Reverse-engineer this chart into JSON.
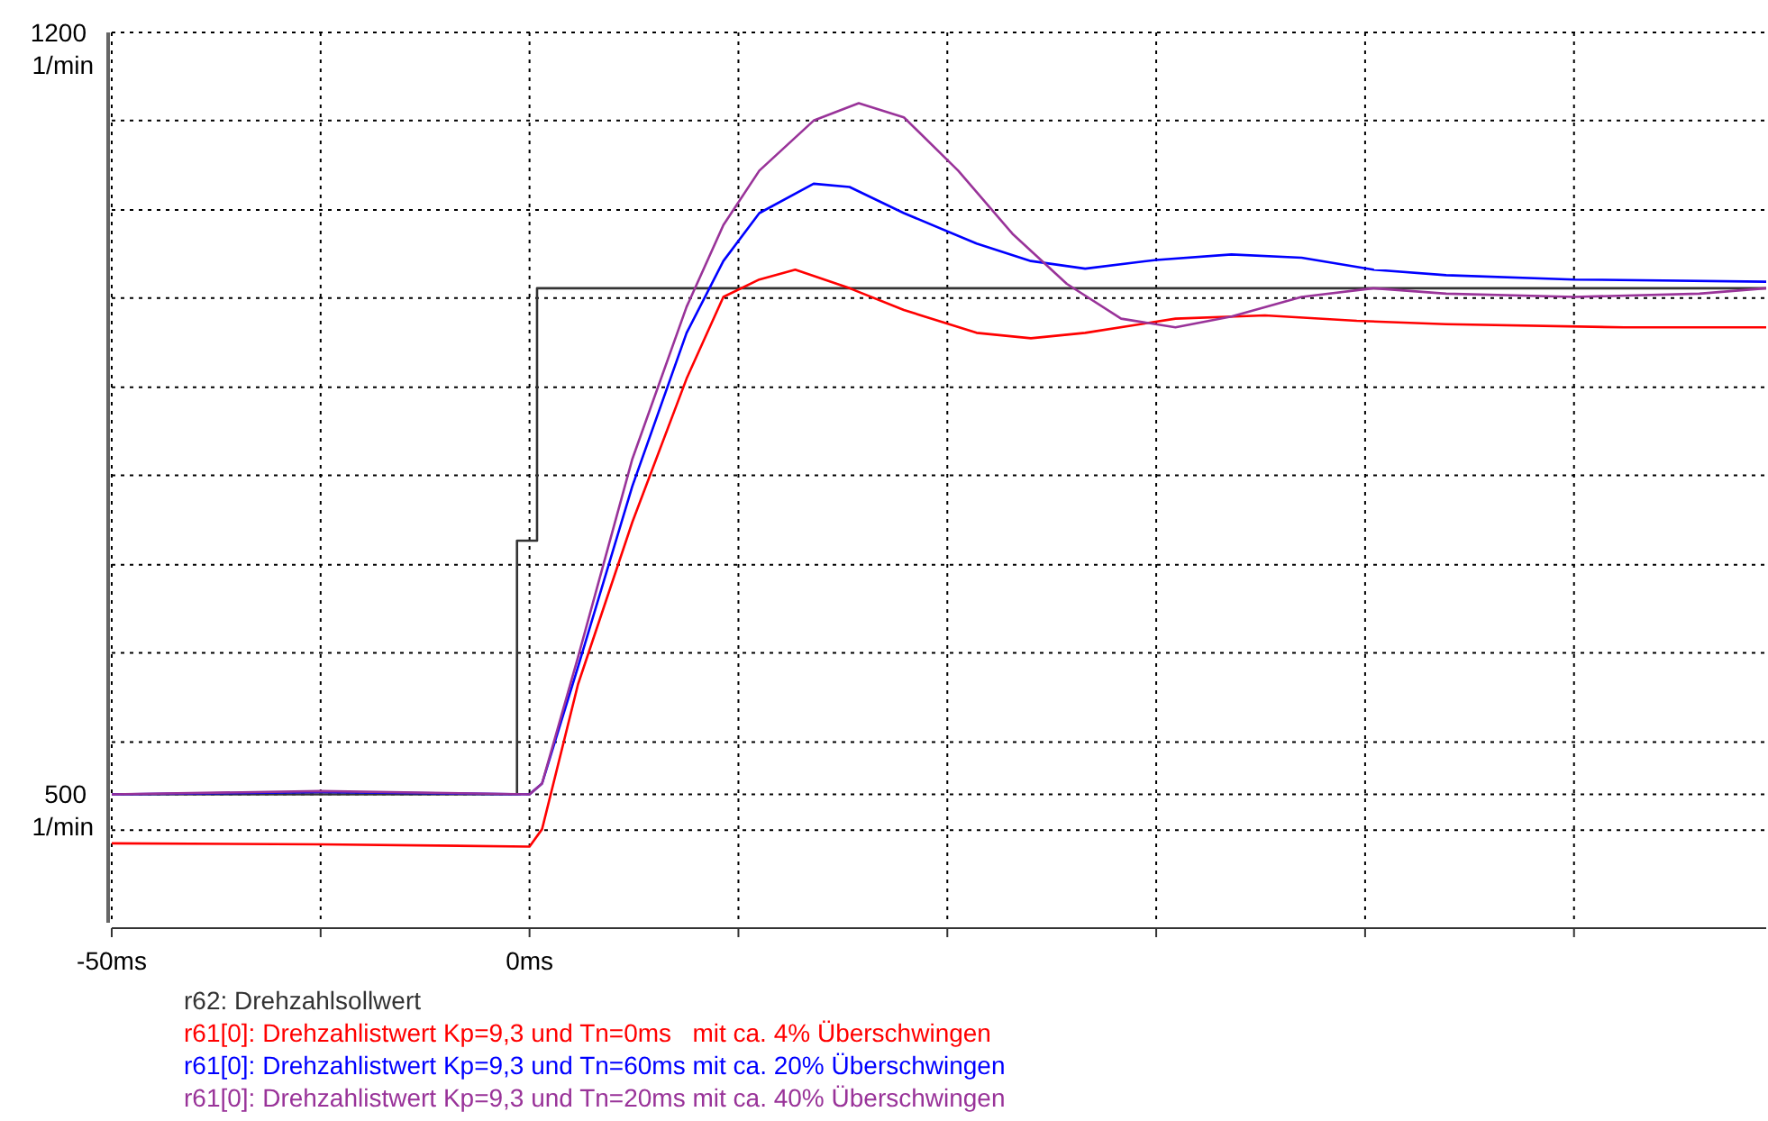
{
  "chart_data": {
    "type": "line",
    "ylabel": "1/min",
    "xlim": [
      -50,
      148
    ],
    "ylim": [
      382,
      1200
    ],
    "xticks": [
      {
        "value": -50,
        "label": "-50ms"
      },
      {
        "value": -25,
        "label": null
      },
      {
        "value": 0,
        "label": "0ms"
      },
      {
        "value": 25,
        "label": null
      },
      {
        "value": 50,
        "label": null
      },
      {
        "value": 75,
        "label": null
      },
      {
        "value": 100,
        "label": null
      },
      {
        "value": 125,
        "label": null
      }
    ],
    "yticks": [
      {
        "value": 467,
        "label": null
      },
      {
        "value": 500,
        "label": "500"
      },
      {
        "value": 548,
        "label": null
      },
      {
        "value": 630,
        "label": null
      },
      {
        "value": 711,
        "label": null
      },
      {
        "value": 793,
        "label": null
      },
      {
        "value": 874,
        "label": null
      },
      {
        "value": 956,
        "label": null
      },
      {
        "value": 1037,
        "label": null
      },
      {
        "value": 1119,
        "label": null
      },
      {
        "value": 1200,
        "label": "1200"
      }
    ],
    "grid": true,
    "legend": "bottom",
    "line_style": "solid",
    "series": [
      {
        "name": "r62: Drehzahlsollwert",
        "type": "step",
        "color": "#333333",
        "x": [
          -50,
          -1.5,
          0.9,
          148
        ],
        "values": [
          500,
          733,
          965,
          965
        ]
      },
      {
        "name": "r61[0]: Drehzahlistwert Kp=9,3 und Tn=0ms   mit ca. 4% Überschwingen",
        "color": "#ff0000",
        "x": [
          -50,
          -25,
          0,
          1.5,
          5.8,
          12.3,
          18.8,
          23.2,
          27.5,
          31.8,
          38.3,
          44.8,
          53.5,
          60,
          66.5,
          77.3,
          88,
          99,
          109.7,
          131,
          148
        ],
        "values": [
          455,
          454,
          452,
          468,
          601,
          750,
          882,
          957,
          973,
          982,
          965,
          945,
          924,
          919,
          924,
          937,
          940,
          935,
          932,
          929,
          929
        ]
      },
      {
        "name": "r61[0]: Drehzahlistwert Kp=9,3 und Tn=60ms mit ca. 20% Überschwingen",
        "color": "#0000ff",
        "x": [
          -50,
          -25,
          0,
          1.5,
          5.8,
          12.3,
          18.8,
          23.2,
          27.5,
          34,
          38.3,
          44.8,
          53.5,
          60,
          66.5,
          75,
          84,
          92.4,
          101,
          109.7,
          125,
          148
        ],
        "values": [
          500,
          502,
          500,
          510,
          617,
          783,
          924,
          990,
          1034,
          1061,
          1058,
          1034,
          1006,
          990,
          983,
          991,
          996,
          993,
          982,
          977,
          973,
          971
        ]
      },
      {
        "name": "r61[0]: Drehzahlistwert Kp=9,3 und Tn=20ms mit ca. 40% Überschwingen",
        "color": "#993399",
        "x": [
          -50,
          -25,
          0,
          1.5,
          5.8,
          12.3,
          18.8,
          23.2,
          27.5,
          34,
          39.4,
          44.8,
          51.3,
          57.8,
          64.3,
          70.8,
          77.3,
          84,
          92.4,
          101,
          109.7,
          125,
          140,
          148
        ],
        "values": [
          500,
          503,
          500,
          510,
          626,
          808,
          948,
          1023,
          1073,
          1119,
          1135,
          1122,
          1073,
          1015,
          969,
          937,
          929,
          939,
          957,
          965,
          960,
          957,
          960,
          965
        ]
      }
    ]
  }
}
